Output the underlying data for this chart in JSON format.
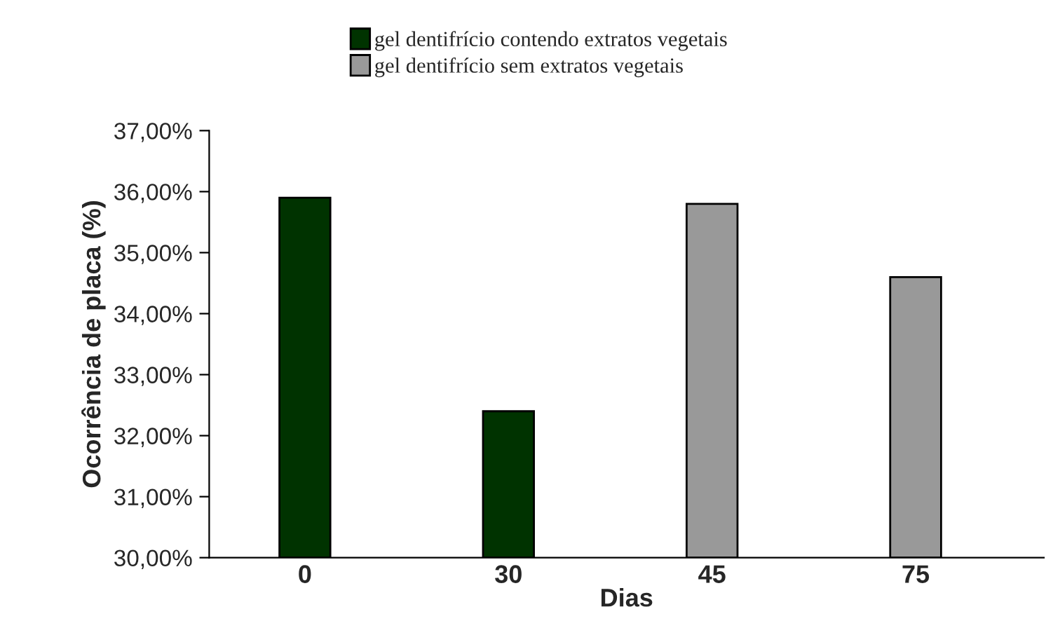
{
  "chart_data": {
    "type": "bar",
    "xlabel": "Dias",
    "ylabel": "Ocorrência de placa (%)",
    "categories": [
      "0",
      "30",
      "45",
      "75"
    ],
    "series": [
      {
        "name": "gel dentifrício contendo extratos vegetais",
        "color": "#003300",
        "values": [
          35.9,
          32.4,
          null,
          null
        ]
      },
      {
        "name": "gel dentifrício sem extratos vegetais",
        "color": "#999999",
        "values": [
          null,
          null,
          35.8,
          34.6
        ]
      }
    ],
    "ylim": [
      30,
      37
    ],
    "yticks": [
      {
        "value": 30,
        "label": "30,00%"
      },
      {
        "value": 31,
        "label": "31,00%"
      },
      {
        "value": 32,
        "label": "32,00%"
      },
      {
        "value": 33,
        "label": "33,00%"
      },
      {
        "value": 34,
        "label": "34,00%"
      },
      {
        "value": 35,
        "label": "35,00%"
      },
      {
        "value": 36,
        "label": "36,00%"
      },
      {
        "value": 37,
        "label": "37,00%"
      }
    ],
    "grid": false,
    "legend": "top"
  }
}
